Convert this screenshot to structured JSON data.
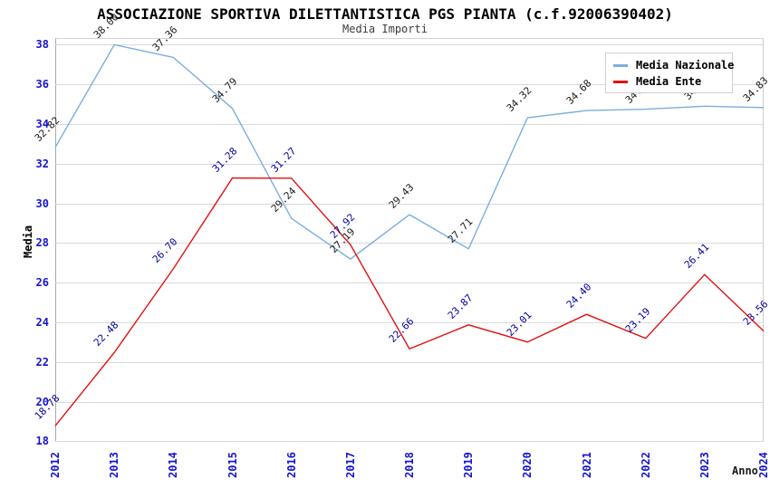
{
  "header": {
    "title": "ASSOCIAZIONE SPORTIVA DILETTANTISTICA PGS PIANTA (c.f.92006390402)",
    "subtitle": "Media Importi"
  },
  "axes": {
    "y_label": "Media",
    "x_label": "Anno",
    "y_ticks": [
      18,
      20,
      22,
      24,
      26,
      28,
      30,
      32,
      34,
      36,
      38
    ],
    "tick_color": "#1515cd"
  },
  "legend": {
    "items": [
      {
        "label": "Media Nazionale",
        "color": "#7aaede"
      },
      {
        "label": "Media Ente",
        "color": "#e01212"
      }
    ]
  },
  "colors": {
    "band_gray": "#f0f0f0",
    "gridline": "#dadada",
    "blue_line": "#7aaede",
    "red_line": "#e01212",
    "blue_series_label": "#1a1a1a",
    "red_series_label": "#0000a0"
  },
  "chart_data": {
    "type": "line",
    "title": "ASSOCIAZIONE SPORTIVA DILETTANTISTICA PGS PIANTA (c.f.92006390402)",
    "subtitle": "Media Importi",
    "xlabel": "Anno",
    "ylabel": "Media",
    "ylim": [
      18,
      38
    ],
    "grid": "horizontal",
    "legend_position": "top-right",
    "x": [
      2012,
      2013,
      2014,
      2015,
      2016,
      2017,
      2018,
      2019,
      2020,
      2021,
      2022,
      2023,
      2024
    ],
    "bands": [
      [
        36,
        38
      ],
      [
        32,
        34
      ],
      [
        28,
        30
      ],
      [
        24,
        26
      ],
      [
        20,
        22
      ]
    ],
    "series": [
      {
        "name": "Media Nazionale",
        "color": "#7aaede",
        "label_color": "#1a1a1a",
        "values": [
          32.82,
          38.0,
          37.36,
          34.79,
          29.24,
          27.19,
          29.43,
          27.71,
          34.32,
          34.68,
          34.75,
          34.9,
          34.83
        ],
        "labels": [
          "32.82",
          "38.00",
          "37.36",
          "34.79",
          "29.24",
          "27.19",
          "29.43",
          "27.71",
          "34.32",
          "34.68",
          "34.75",
          "34.90",
          "34.83"
        ],
        "labels_occluded_by_legend": [
          2022,
          2023
        ]
      },
      {
        "name": "Media Ente",
        "color": "#e01212",
        "label_color": "#0000a0",
        "values": [
          18.78,
          22.48,
          26.7,
          31.28,
          31.27,
          27.92,
          22.66,
          23.87,
          23.01,
          24.4,
          23.19,
          26.41,
          23.56
        ],
        "labels": [
          "18.78",
          "22.48",
          "26.70",
          "31.28",
          "31.27",
          "27.92",
          "22.66",
          "23.87",
          "23.01",
          "24.40",
          "23.19",
          "26.41",
          "23.56"
        ]
      }
    ]
  }
}
